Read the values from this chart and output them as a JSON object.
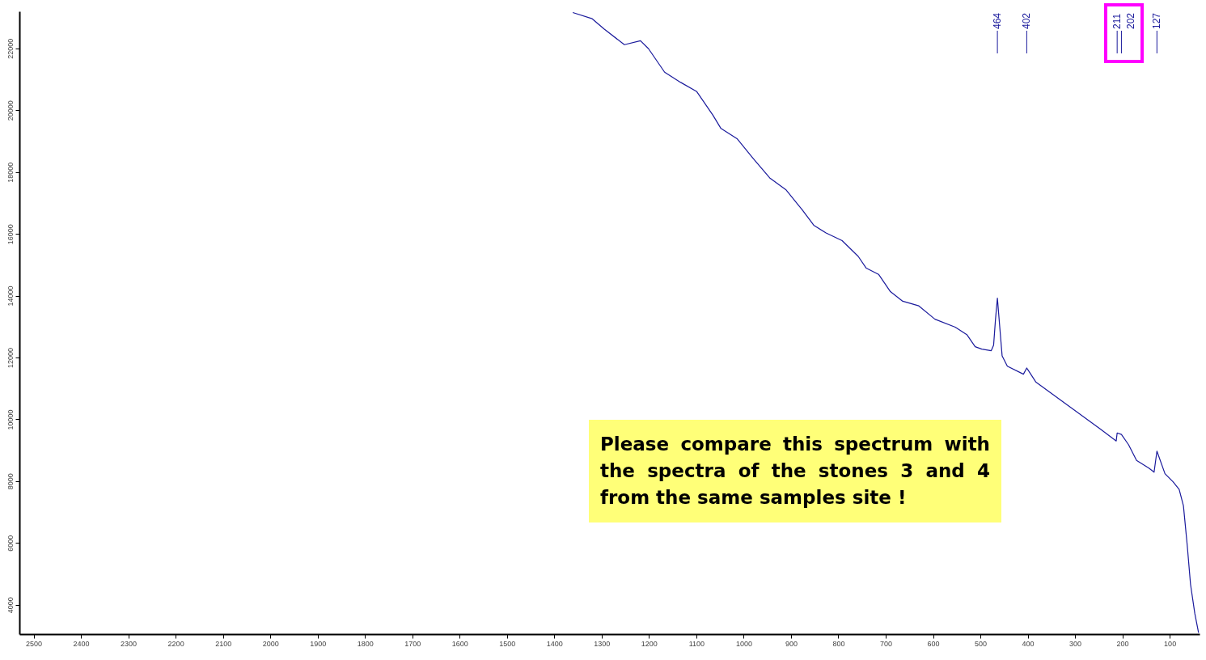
{
  "chart_data": {
    "type": "line",
    "xlim": [
      2530,
      37
    ],
    "ylim": [
      3050,
      23200
    ],
    "xticks": [
      2500,
      2400,
      2300,
      2200,
      2100,
      2000,
      1900,
      1800,
      1700,
      1600,
      1500,
      1400,
      1300,
      1200,
      1100,
      1000,
      900,
      800,
      700,
      600,
      500,
      400,
      300,
      200,
      100
    ],
    "yticks": [
      4000,
      6000,
      8000,
      10000,
      12000,
      14000,
      16000,
      18000,
      20000,
      22000
    ],
    "series": [
      {
        "color": "#1a1a9c",
        "x": [
          1361,
          1320,
          1295,
          1252,
          1218,
          1201,
          1167,
          1133,
          1099,
          1065,
          1048,
          1014,
          980,
          945,
          911,
          877,
          852,
          826,
          792,
          758,
          741,
          715,
          690,
          664,
          630,
          596,
          553,
          528,
          511,
          497,
          477,
          472,
          468,
          464,
          459,
          454,
          443,
          409,
          402,
          383,
          349,
          315,
          281,
          247,
          213,
          211,
          202,
          187,
          170,
          144,
          133,
          127,
          110,
          93,
          80,
          71,
          63,
          56,
          47,
          39
        ],
        "values": [
          23160,
          22960,
          22630,
          22120,
          22250,
          21990,
          21230,
          20900,
          20600,
          19840,
          19410,
          19080,
          18440,
          17810,
          17430,
          16790,
          16280,
          16030,
          15780,
          15270,
          14890,
          14690,
          14130,
          13820,
          13670,
          13240,
          12980,
          12730,
          12350,
          12270,
          12220,
          12400,
          13240,
          13920,
          12980,
          12050,
          11720,
          11460,
          11660,
          11210,
          10830,
          10450,
          10070,
          9690,
          9300,
          9560,
          9510,
          9180,
          8670,
          8420,
          8290,
          8970,
          8240,
          7980,
          7730,
          7200,
          5930,
          4660,
          3720,
          3090
        ]
      }
    ],
    "ref_lines": [
      {
        "axis": "x",
        "value": 464,
        "label": "464"
      },
      {
        "axis": "x",
        "value": 402,
        "label": "402"
      },
      {
        "axis": "x",
        "value": 211,
        "label": "211"
      },
      {
        "axis": "x",
        "value": 202,
        "label": "202"
      },
      {
        "axis": "x",
        "value": 127,
        "label": "127"
      }
    ],
    "annotations": [
      "Please compare this spectrum with the spectra of the stones 3 and 4 from the same samples site !"
    ]
  }
}
